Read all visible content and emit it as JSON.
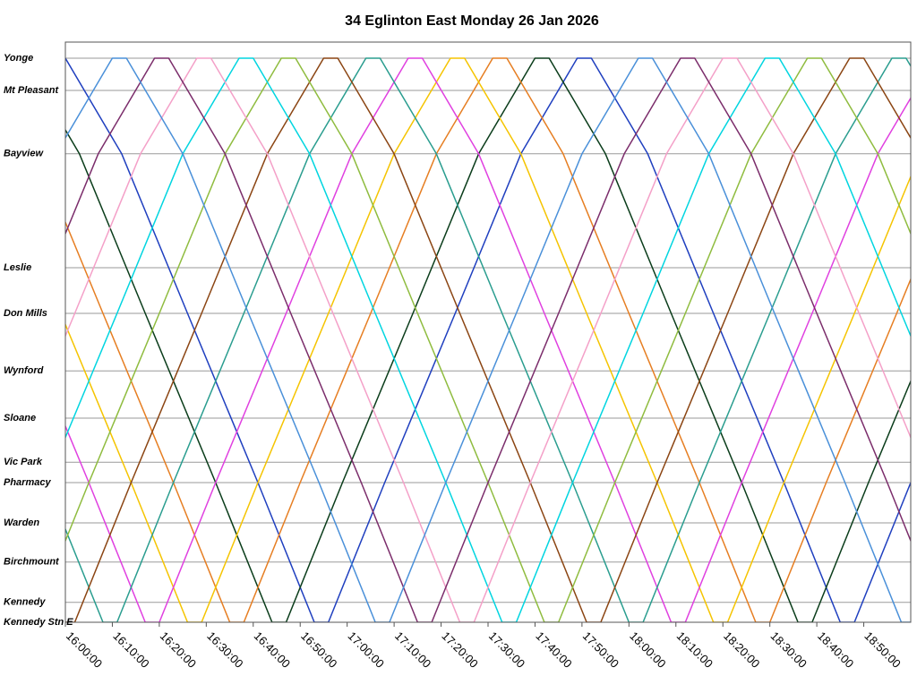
{
  "chart_data": {
    "type": "line",
    "title": "34 Eglinton East Monday 26 Jan 2026",
    "xlim": [
      960,
      1140
    ],
    "xticks": [
      {
        "value": 960,
        "label": "16:00:00"
      },
      {
        "value": 970,
        "label": "16:10:00"
      },
      {
        "value": 980,
        "label": "16:20:00"
      },
      {
        "value": 990,
        "label": "16:30:00"
      },
      {
        "value": 1000,
        "label": "16:40:00"
      },
      {
        "value": 1010,
        "label": "16:50:00"
      },
      {
        "value": 1020,
        "label": "17:00:00"
      },
      {
        "value": 1030,
        "label": "17:10:00"
      },
      {
        "value": 1040,
        "label": "17:20:00"
      },
      {
        "value": 1050,
        "label": "17:30:00"
      },
      {
        "value": 1060,
        "label": "17:40:00"
      },
      {
        "value": 1070,
        "label": "17:50:00"
      },
      {
        "value": 1080,
        "label": "18:00:00"
      },
      {
        "value": 1090,
        "label": "18:10:00"
      },
      {
        "value": 1100,
        "label": "18:20:00"
      },
      {
        "value": 1110,
        "label": "18:30:00"
      },
      {
        "value": 1120,
        "label": "18:40:00"
      },
      {
        "value": 1130,
        "label": "18:50:00"
      }
    ],
    "ylim": [
      0,
      10.8
    ],
    "yticks": [
      {
        "value": 10.5,
        "label": "Yonge"
      },
      {
        "value": 9.9,
        "label": "Mt Pleasant"
      },
      {
        "value": 8.72,
        "label": "Bayview"
      },
      {
        "value": 6.6,
        "label": "Leslie"
      },
      {
        "value": 5.75,
        "label": "Don Mills"
      },
      {
        "value": 4.68,
        "label": "Wynford"
      },
      {
        "value": 3.8,
        "label": "Sloane"
      },
      {
        "value": 2.98,
        "label": "Vic Park"
      },
      {
        "value": 2.6,
        "label": "Pharmacy"
      },
      {
        "value": 1.85,
        "label": "Warden"
      },
      {
        "value": 1.12,
        "label": "Birchmount"
      },
      {
        "value": 0.37,
        "label": "Kennedy"
      },
      {
        "value": 0,
        "label": "Kennedy Stn E"
      }
    ],
    "grid": true,
    "series": [
      {
        "color": "#1f3fbf",
        "x": [
          960,
          972,
          986,
          1001,
          1013,
          1016,
          1028,
          1043,
          1057,
          1069,
          1072,
          1084,
          1098,
          1113,
          1125,
          1128,
          1140
        ],
        "values": [
          10.5,
          8.72,
          5.75,
          2.6,
          0,
          0,
          2.6,
          5.75,
          8.72,
          10.5,
          10.5,
          8.72,
          5.75,
          2.6,
          0,
          0,
          2.6
        ]
      },
      {
        "color": "#0b3d1b",
        "x": [
          951,
          963,
          977,
          992,
          1004,
          1007,
          1019,
          1034,
          1048,
          1060,
          1063,
          1075,
          1089,
          1104,
          1116,
          1119,
          1131,
          1146
        ],
        "values": [
          10.5,
          8.72,
          5.75,
          2.6,
          0,
          0,
          2.6,
          5.75,
          8.72,
          10.5,
          10.5,
          8.72,
          5.75,
          2.6,
          0,
          0,
          2.6,
          5.75
        ]
      },
      {
        "color": "#e67e22",
        "x": [
          954,
          968,
          983,
          995,
          998,
          1010,
          1025,
          1039,
          1051,
          1054,
          1066,
          1080,
          1095,
          1107,
          1110,
          1122,
          1137,
          1151
        ],
        "values": [
          8.72,
          5.75,
          2.6,
          0,
          0,
          2.6,
          5.75,
          8.72,
          10.5,
          10.5,
          8.72,
          5.75,
          2.6,
          0,
          0,
          2.6,
          5.75,
          8.72
        ]
      },
      {
        "color": "#f5c400",
        "x": [
          959,
          974,
          986,
          989,
          1001,
          1016,
          1030,
          1042,
          1045,
          1057,
          1071,
          1086,
          1098,
          1101,
          1113,
          1128,
          1142
        ],
        "values": [
          5.75,
          2.6,
          0,
          0,
          2.6,
          5.75,
          8.72,
          10.5,
          10.5,
          8.72,
          5.75,
          2.6,
          0,
          0,
          2.6,
          5.75,
          8.72
        ]
      },
      {
        "color": "#e040e0",
        "x": [
          950,
          965,
          977,
          980,
          992,
          1007,
          1021,
          1033,
          1036,
          1048,
          1062,
          1077,
          1089,
          1092,
          1104,
          1119,
          1133,
          1145
        ],
        "values": [
          5.75,
          2.6,
          0,
          0,
          2.6,
          5.75,
          8.72,
          10.5,
          10.5,
          8.72,
          5.75,
          2.6,
          0,
          0,
          2.6,
          5.75,
          8.72,
          10.5
        ]
      },
      {
        "color": "#2a9d8f",
        "x": [
          956,
          968,
          971,
          983,
          998,
          1012,
          1024,
          1027,
          1039,
          1053,
          1068,
          1080,
          1083,
          1095,
          1110,
          1124,
          1136,
          1139,
          1151
        ],
        "values": [
          2.6,
          0,
          0,
          2.6,
          5.75,
          8.72,
          10.5,
          10.5,
          8.72,
          5.75,
          2.6,
          0,
          0,
          2.6,
          5.75,
          8.72,
          10.5,
          10.5,
          8.72
        ]
      },
      {
        "color": "#8b4513",
        "x": [
          959,
          962,
          974,
          989,
          1003,
          1015,
          1018,
          1030,
          1044,
          1059,
          1071,
          1074,
          1086,
          1101,
          1115,
          1127,
          1130,
          1142
        ],
        "values": [
          0,
          0,
          2.6,
          5.75,
          8.72,
          10.5,
          10.5,
          8.72,
          5.75,
          2.6,
          0,
          0,
          2.6,
          5.75,
          8.72,
          10.5,
          10.5,
          8.72
        ]
      },
      {
        "color": "#8fbc3f",
        "x": [
          953,
          965,
          980,
          994,
          1006,
          1009,
          1021,
          1035,
          1050,
          1062,
          1065,
          1077,
          1092,
          1106,
          1118,
          1121,
          1133,
          1147
        ],
        "values": [
          0,
          2.6,
          5.75,
          8.72,
          10.5,
          10.5,
          8.72,
          5.75,
          2.6,
          0,
          0,
          2.6,
          5.75,
          8.72,
          10.5,
          10.5,
          8.72,
          5.75
        ]
      },
      {
        "color": "#00d5e0",
        "x": [
          956,
          971,
          985,
          997,
          1000,
          1012,
          1026,
          1041,
          1053,
          1056,
          1068,
          1083,
          1097,
          1109,
          1112,
          1124,
          1138,
          1153
        ],
        "values": [
          2.6,
          5.75,
          8.72,
          10.5,
          10.5,
          8.72,
          5.75,
          2.6,
          0,
          0,
          2.6,
          5.75,
          8.72,
          10.5,
          10.5,
          8.72,
          5.75,
          2.6
        ]
      },
      {
        "color": "#f4a0c8",
        "x": [
          947,
          962,
          976,
          988,
          991,
          1003,
          1017,
          1032,
          1044,
          1047,
          1059,
          1074,
          1088,
          1100,
          1103,
          1115,
          1129,
          1144
        ],
        "values": [
          2.6,
          5.75,
          8.72,
          10.5,
          10.5,
          8.72,
          5.75,
          2.6,
          0,
          0,
          2.6,
          5.75,
          8.72,
          10.5,
          10.5,
          8.72,
          5.75,
          2.6
        ]
      },
      {
        "color": "#7b2d6b",
        "x": [
          953,
          967,
          979,
          982,
          994,
          1008,
          1023,
          1035,
          1038,
          1050,
          1065,
          1079,
          1091,
          1094,
          1106,
          1120,
          1135,
          1147
        ],
        "values": [
          5.75,
          8.72,
          10.5,
          10.5,
          8.72,
          5.75,
          2.6,
          0,
          0,
          2.6,
          5.75,
          8.72,
          10.5,
          10.5,
          8.72,
          5.75,
          2.6,
          0
        ]
      },
      {
        "color": "#4a90d9",
        "x": [
          958,
          970,
          973,
          985,
          999,
          1014,
          1026,
          1029,
          1041,
          1056,
          1070,
          1082,
          1085,
          1097,
          1111,
          1126,
          1138,
          1141
        ],
        "values": [
          8.72,
          10.5,
          10.5,
          8.72,
          5.75,
          2.6,
          0,
          0,
          2.6,
          5.75,
          8.72,
          10.5,
          10.5,
          8.72,
          5.75,
          2.6,
          0,
          0
        ]
      }
    ]
  }
}
